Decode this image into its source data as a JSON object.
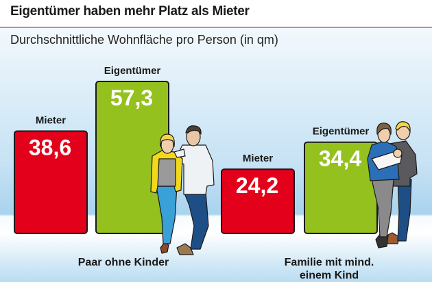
{
  "header": {
    "title": "Eigentümer haben mehr Platz als Mieter",
    "subtitle": "Durchschnittliche Wohnfläche pro Person (in qm)"
  },
  "colors": {
    "mieter": "#e2001a",
    "eigentuemer": "#95c11f",
    "accent_rule": "#c98a8a"
  },
  "chart_data": {
    "type": "bar",
    "title": "Eigentümer haben mehr Platz als Mieter",
    "subtitle": "Durchschnittliche Wohnfläche pro Person (in qm)",
    "xlabel": "",
    "ylabel": "",
    "unit": "qm",
    "categories": [
      "Paar ohne Kinder",
      "Familie mit mind. einem Kind"
    ],
    "category_lines": [
      [
        "Paar ohne Kinder"
      ],
      [
        "Familie mit mind.",
        "einem Kind"
      ]
    ],
    "series": [
      {
        "name": "Mieter",
        "values": [
          38.6,
          24.2
        ],
        "labels": [
          "38,6",
          "24,2"
        ]
      },
      {
        "name": "Eigentümer",
        "values": [
          57.3,
          34.4
        ],
        "labels": [
          "57,3",
          "34,4"
        ]
      }
    ],
    "ylim": [
      0,
      60
    ],
    "grid": false,
    "legend": "none (series names shown above each bar)"
  },
  "illustrations": [
    {
      "name": "couple-illustration",
      "group": "Paar ohne Kinder"
    },
    {
      "name": "family-illustration",
      "group": "Familie mit mind. einem Kind"
    }
  ]
}
